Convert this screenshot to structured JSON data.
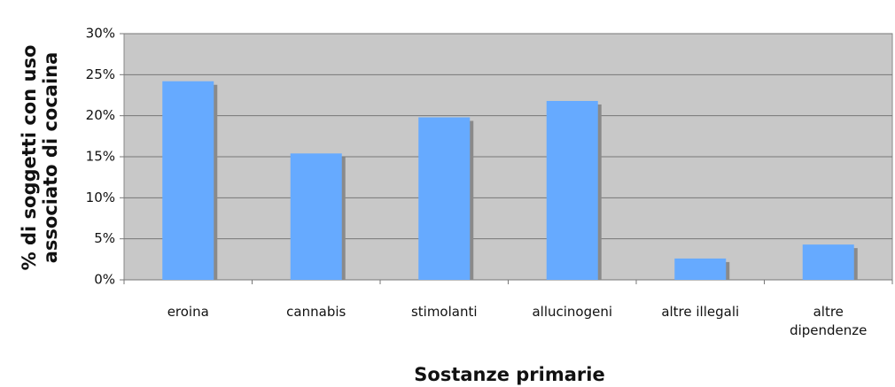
{
  "chart_data": {
    "type": "bar",
    "y_label": [
      "% di soggetti con uso",
      "associato di cocaina"
    ],
    "x_label": "Sostanze primarie",
    "categories": [
      "eroina",
      "cannabis",
      "stimolanti",
      "allucinogeni",
      "altre illegali",
      "altre dipendenze"
    ],
    "values": [
      24.2,
      15.4,
      19.8,
      21.8,
      2.6,
      4.3
    ],
    "color": "#66aaff",
    "ylim": [
      0,
      30
    ],
    "yticks": [
      {
        "value": 0,
        "label": "0%"
      },
      {
        "value": 5,
        "label": "5%"
      },
      {
        "value": 10,
        "label": "10%"
      },
      {
        "value": 15,
        "label": "15%"
      },
      {
        "value": 20,
        "label": "20%"
      },
      {
        "value": 25,
        "label": "25%"
      },
      {
        "value": 30,
        "label": "30%"
      }
    ],
    "grid": true
  }
}
